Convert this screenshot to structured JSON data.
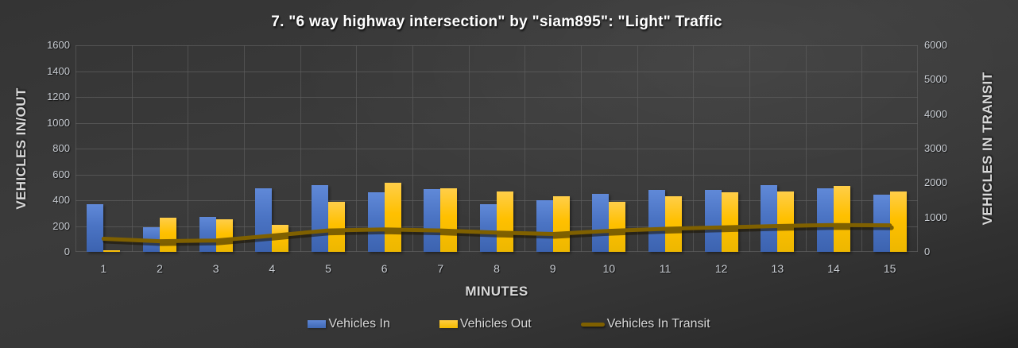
{
  "chart_data": {
    "type": "combo-bar-line",
    "title": "7. \"6 way highway intersection\" by \"siam895\": \"Light\" Traffic",
    "xlabel": "MINUTES",
    "ylabel_left": "VEHICLES IN/OUT",
    "ylabel_right": "VEHICLES IN TRANSIT",
    "grid": true,
    "legend_position": "bottom",
    "categories": [
      "1",
      "2",
      "3",
      "4",
      "5",
      "6",
      "7",
      "8",
      "9",
      "10",
      "11",
      "12",
      "13",
      "14",
      "15"
    ],
    "left_axis": {
      "min": 0,
      "max": 1600,
      "step": 200,
      "ticks": [
        0,
        200,
        400,
        600,
        800,
        1000,
        1200,
        1400,
        1600
      ]
    },
    "right_axis": {
      "min": 0,
      "max": 6000,
      "step": 1000,
      "ticks": [
        0,
        1000,
        2000,
        3000,
        4000,
        5000,
        6000
      ]
    },
    "series": [
      {
        "name": "Vehicles In",
        "type": "bar",
        "axis": "left",
        "color": "#4472C4",
        "values": [
          370,
          190,
          270,
          490,
          515,
          460,
          485,
          370,
          400,
          450,
          480,
          480,
          515,
          490,
          445
        ]
      },
      {
        "name": "Vehicles Out",
        "type": "bar",
        "axis": "left",
        "color": "#FFC000",
        "values": [
          10,
          265,
          255,
          210,
          385,
          535,
          490,
          470,
          430,
          390,
          430,
          460,
          470,
          510,
          465
        ]
      },
      {
        "name": "Vehicles In Transit",
        "type": "line",
        "axis": "right",
        "color": "#7F6000",
        "values": [
          380,
          310,
          330,
          470,
          620,
          650,
          620,
          560,
          520,
          610,
          670,
          710,
          750,
          780,
          770
        ]
      }
    ]
  },
  "colors": {
    "background": "#363636",
    "gridline": "#5d5d5d",
    "tick_text": "#c9cdd3",
    "axis_title_text": "#d9d9d9",
    "title_text": "#ffffff",
    "bar_in": "#4472C4",
    "bar_out": "#FFC000",
    "line_transit": "#7F6000"
  }
}
